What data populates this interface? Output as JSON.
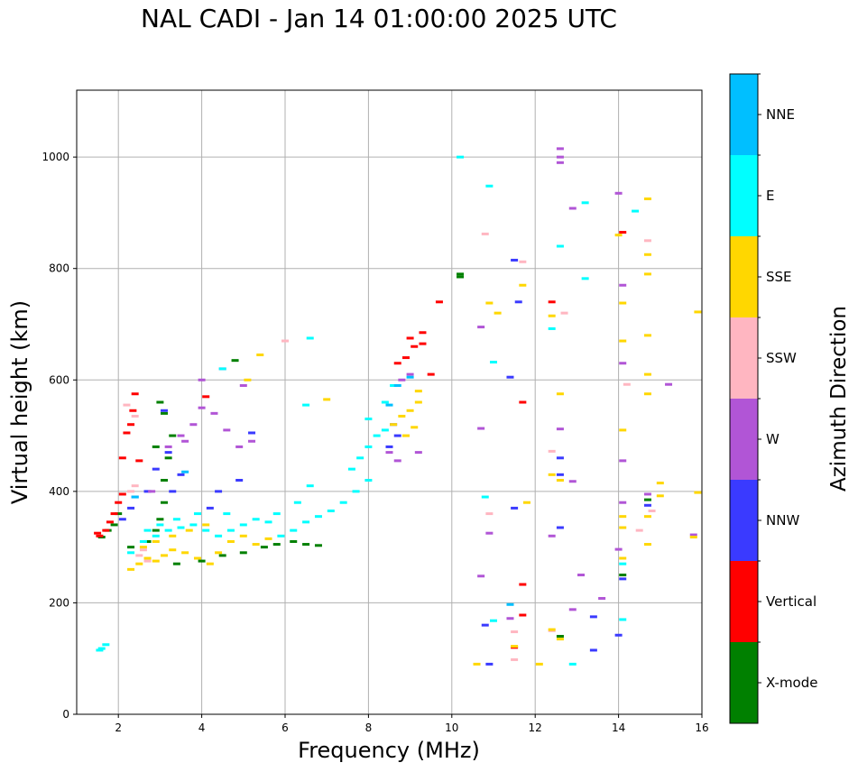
{
  "chart_data": {
    "type": "scatter",
    "title": "NAL CADI - Jan 14 01:00:00 2025 UTC",
    "xlabel": "Frequency (MHz)",
    "ylabel": "Virtual height (km)",
    "xlim": [
      1,
      16
    ],
    "ylim": [
      0,
      1120
    ],
    "xticks": [
      2,
      4,
      6,
      8,
      10,
      12,
      14,
      16
    ],
    "yticks": [
      0,
      200,
      400,
      600,
      800,
      1000
    ],
    "grid": true,
    "colorbar": {
      "label": "Azimuth Direction",
      "categories": [
        "X-mode",
        "Vertical",
        "NNW",
        "W",
        "SSW",
        "SSE",
        "E",
        "NNE"
      ],
      "colors": [
        "#008000",
        "#ff0000",
        "#3a3aff",
        "#b155d6",
        "#ffb6c1",
        "#ffd700",
        "#00ffff",
        "#00bfff"
      ]
    },
    "series": [
      {
        "name": "X-mode",
        "points": [
          [
            1.6,
            318
          ],
          [
            1.75,
            330
          ],
          [
            1.9,
            340
          ],
          [
            2.0,
            360
          ],
          [
            2.3,
            300
          ],
          [
            2.7,
            310
          ],
          [
            2.9,
            330
          ],
          [
            3.0,
            350
          ],
          [
            3.1,
            380
          ],
          [
            3.1,
            420
          ],
          [
            3.2,
            460
          ],
          [
            3.3,
            500
          ],
          [
            3.1,
            540
          ],
          [
            3.0,
            560
          ],
          [
            2.9,
            480
          ],
          [
            3.4,
            270
          ],
          [
            4.0,
            275
          ],
          [
            4.5,
            285
          ],
          [
            5.0,
            290
          ],
          [
            5.5,
            300
          ],
          [
            5.8,
            305
          ],
          [
            6.2,
            310
          ],
          [
            6.5,
            305
          ],
          [
            6.8,
            303
          ],
          [
            4.8,
            635
          ],
          [
            10.2,
            785
          ],
          [
            10.2,
            790
          ],
          [
            12.6,
            140
          ],
          [
            14.1,
            250
          ],
          [
            14.7,
            385
          ]
        ]
      },
      {
        "name": "Vertical",
        "points": [
          [
            1.5,
            325
          ],
          [
            1.55,
            320
          ],
          [
            1.7,
            330
          ],
          [
            1.8,
            345
          ],
          [
            1.9,
            360
          ],
          [
            2.0,
            380
          ],
          [
            2.1,
            395
          ],
          [
            2.3,
            520
          ],
          [
            2.35,
            545
          ],
          [
            2.4,
            575
          ],
          [
            2.2,
            505
          ],
          [
            2.1,
            460
          ],
          [
            2.5,
            455
          ],
          [
            8.7,
            630
          ],
          [
            8.9,
            640
          ],
          [
            9.1,
            660
          ],
          [
            9.0,
            675
          ],
          [
            9.3,
            685
          ],
          [
            9.3,
            665
          ],
          [
            9.5,
            610
          ],
          [
            9.7,
            740
          ],
          [
            4.1,
            570
          ],
          [
            11.7,
            560
          ],
          [
            12.4,
            740
          ],
          [
            14.1,
            865
          ],
          [
            11.7,
            233
          ],
          [
            11.7,
            178
          ],
          [
            11.5,
            120
          ]
        ]
      },
      {
        "name": "NNW",
        "points": [
          [
            2.1,
            350
          ],
          [
            2.3,
            370
          ],
          [
            2.4,
            390
          ],
          [
            2.7,
            400
          ],
          [
            2.9,
            440
          ],
          [
            3.2,
            470
          ],
          [
            3.5,
            430
          ],
          [
            3.3,
            400
          ],
          [
            4.2,
            370
          ],
          [
            4.4,
            400
          ],
          [
            4.9,
            420
          ],
          [
            5.2,
            505
          ],
          [
            3.1,
            545
          ],
          [
            8.5,
            480
          ],
          [
            8.7,
            500
          ],
          [
            8.6,
            520
          ],
          [
            11.4,
            605
          ],
          [
            11.6,
            740
          ],
          [
            11.5,
            815
          ],
          [
            12.6,
            430
          ],
          [
            12.6,
            335
          ],
          [
            13.4,
            175
          ],
          [
            13.4,
            115
          ],
          [
            14.0,
            142
          ],
          [
            10.8,
            160
          ],
          [
            10.9,
            90
          ],
          [
            11.5,
            370
          ],
          [
            12.6,
            460
          ],
          [
            14.7,
            375
          ],
          [
            14.1,
            243
          ]
        ]
      },
      {
        "name": "W",
        "points": [
          [
            2.8,
            400
          ],
          [
            3.2,
            480
          ],
          [
            3.5,
            500
          ],
          [
            3.8,
            520
          ],
          [
            4.0,
            550
          ],
          [
            4.3,
            540
          ],
          [
            4.6,
            510
          ],
          [
            4.9,
            480
          ],
          [
            5.2,
            490
          ],
          [
            3.6,
            490
          ],
          [
            4.0,
            600
          ],
          [
            4.5,
            620
          ],
          [
            5.0,
            590
          ],
          [
            8.5,
            470
          ],
          [
            8.7,
            455
          ],
          [
            9.2,
            470
          ],
          [
            8.8,
            600
          ],
          [
            9.0,
            610
          ],
          [
            10.7,
            695
          ],
          [
            10.7,
            513
          ],
          [
            12.6,
            1015
          ],
          [
            12.6,
            1000
          ],
          [
            12.6,
            990
          ],
          [
            12.9,
            908
          ],
          [
            14.0,
            935
          ],
          [
            14.1,
            770
          ],
          [
            14.1,
            630
          ],
          [
            14.1,
            455
          ],
          [
            14.1,
            380
          ],
          [
            12.6,
            512
          ],
          [
            12.9,
            418
          ],
          [
            12.4,
            320
          ],
          [
            10.9,
            325
          ],
          [
            10.7,
            248
          ],
          [
            13.1,
            250
          ],
          [
            13.6,
            208
          ],
          [
            12.9,
            188
          ],
          [
            11.4,
            172
          ],
          [
            14.0,
            296
          ],
          [
            14.7,
            395
          ],
          [
            15.2,
            592
          ],
          [
            15.8,
            322
          ]
        ]
      },
      {
        "name": "SSW",
        "points": [
          [
            2.3,
            400
          ],
          [
            2.4,
            410
          ],
          [
            2.5,
            285
          ],
          [
            2.7,
            275
          ],
          [
            2.6,
            295
          ],
          [
            2.2,
            555
          ],
          [
            2.4,
            535
          ],
          [
            6.0,
            670
          ],
          [
            10.8,
            862
          ],
          [
            11.7,
            812
          ],
          [
            12.7,
            720
          ],
          [
            14.7,
            850
          ],
          [
            14.2,
            592
          ],
          [
            10.9,
            360
          ],
          [
            11.5,
            148
          ],
          [
            12.4,
            150
          ],
          [
            11.5,
            98
          ],
          [
            14.5,
            330
          ],
          [
            12.4,
            472
          ],
          [
            14.8,
            365
          ]
        ]
      },
      {
        "name": "SSE",
        "points": [
          [
            2.3,
            260
          ],
          [
            2.5,
            270
          ],
          [
            2.7,
            280
          ],
          [
            2.9,
            275
          ],
          [
            3.1,
            285
          ],
          [
            3.3,
            295
          ],
          [
            3.6,
            290
          ],
          [
            3.9,
            280
          ],
          [
            4.2,
            270
          ],
          [
            4.4,
            290
          ],
          [
            4.7,
            310
          ],
          [
            5.0,
            320
          ],
          [
            5.3,
            305
          ],
          [
            5.6,
            315
          ],
          [
            2.6,
            300
          ],
          [
            2.9,
            310
          ],
          [
            3.3,
            320
          ],
          [
            3.7,
            330
          ],
          [
            4.1,
            340
          ],
          [
            5.1,
            600
          ],
          [
            5.4,
            645
          ],
          [
            7.0,
            565
          ],
          [
            8.6,
            520
          ],
          [
            8.8,
            535
          ],
          [
            9.0,
            545
          ],
          [
            9.2,
            560
          ],
          [
            9.2,
            580
          ],
          [
            8.9,
            500
          ],
          [
            9.1,
            515
          ],
          [
            10.9,
            738
          ],
          [
            11.1,
            720
          ],
          [
            11.7,
            770
          ],
          [
            12.4,
            715
          ],
          [
            12.6,
            575
          ],
          [
            12.4,
            430
          ],
          [
            12.6,
            420
          ],
          [
            12.6,
            135
          ],
          [
            12.4,
            152
          ],
          [
            11.8,
            380
          ],
          [
            11.5,
            122
          ],
          [
            10.6,
            90
          ],
          [
            12.1,
            90
          ],
          [
            14.0,
            860
          ],
          [
            14.1,
            738
          ],
          [
            14.1,
            670
          ],
          [
            14.1,
            510
          ],
          [
            14.1,
            355
          ],
          [
            14.1,
            335
          ],
          [
            14.1,
            280
          ],
          [
            14.7,
            925
          ],
          [
            14.7,
            825
          ],
          [
            14.7,
            790
          ],
          [
            14.7,
            680
          ],
          [
            14.7,
            610
          ],
          [
            14.7,
            575
          ],
          [
            14.7,
            355
          ],
          [
            14.7,
            305
          ],
          [
            15.0,
            415
          ],
          [
            15.0,
            392
          ],
          [
            15.9,
            722
          ],
          [
            15.8,
            318
          ],
          [
            15.9,
            398
          ]
        ]
      },
      {
        "name": "E",
        "points": [
          [
            1.6,
            118
          ],
          [
            1.7,
            125
          ],
          [
            1.55,
            115
          ],
          [
            2.3,
            290
          ],
          [
            2.6,
            310
          ],
          [
            2.9,
            320
          ],
          [
            3.2,
            330
          ],
          [
            3.5,
            335
          ],
          [
            3.8,
            340
          ],
          [
            4.1,
            330
          ],
          [
            4.4,
            320
          ],
          [
            4.7,
            330
          ],
          [
            5.0,
            340
          ],
          [
            5.3,
            350
          ],
          [
            5.6,
            345
          ],
          [
            5.9,
            320
          ],
          [
            6.2,
            330
          ],
          [
            6.5,
            345
          ],
          [
            6.8,
            355
          ],
          [
            7.1,
            365
          ],
          [
            7.4,
            380
          ],
          [
            7.7,
            400
          ],
          [
            8.0,
            420
          ],
          [
            7.6,
            440
          ],
          [
            7.8,
            460
          ],
          [
            8.0,
            480
          ],
          [
            8.2,
            500
          ],
          [
            8.0,
            530
          ],
          [
            8.4,
            560
          ],
          [
            8.6,
            590
          ],
          [
            8.4,
            510
          ],
          [
            6.6,
            410
          ],
          [
            6.3,
            380
          ],
          [
            5.8,
            360
          ],
          [
            4.6,
            360
          ],
          [
            3.9,
            360
          ],
          [
            3.4,
            350
          ],
          [
            3.0,
            340
          ],
          [
            2.7,
            330
          ],
          [
            6.6,
            675
          ],
          [
            4.5,
            620
          ],
          [
            6.5,
            555
          ],
          [
            10.2,
            1000
          ],
          [
            10.9,
            948
          ],
          [
            11.0,
            632
          ],
          [
            12.6,
            840
          ],
          [
            13.2,
            918
          ],
          [
            13.2,
            782
          ],
          [
            14.4,
            903
          ],
          [
            12.4,
            692
          ],
          [
            12.9,
            90
          ],
          [
            10.8,
            390
          ],
          [
            14.1,
            270
          ],
          [
            14.1,
            170
          ],
          [
            11.0,
            168
          ]
        ]
      },
      {
        "name": "NNE",
        "points": [
          [
            2.4,
            390
          ],
          [
            3.6,
            435
          ],
          [
            8.5,
            555
          ],
          [
            8.7,
            590
          ],
          [
            9.0,
            605
          ],
          [
            11.4,
            197
          ]
        ]
      }
    ]
  }
}
